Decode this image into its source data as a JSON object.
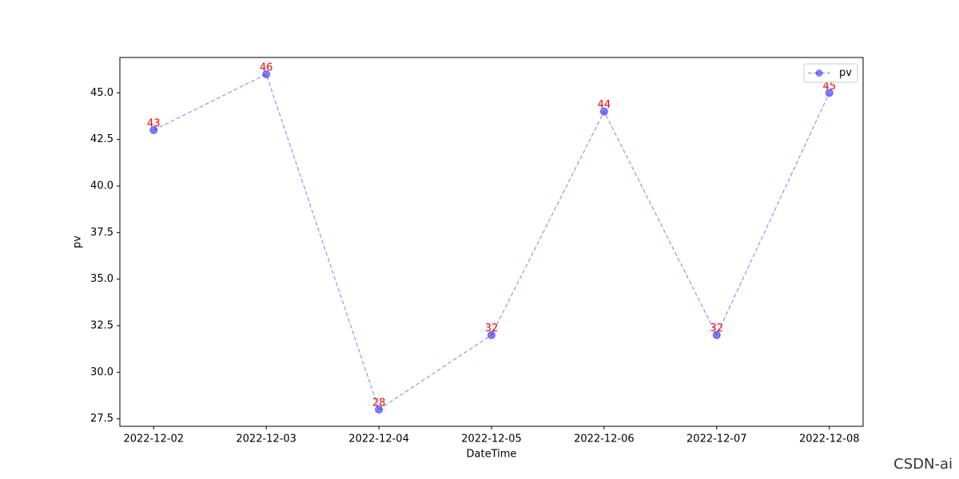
{
  "chart_data": {
    "type": "line",
    "xlabel": "DateTime",
    "ylabel": "pv",
    "categories": [
      "2022-12-02",
      "2022-12-03",
      "2022-12-04",
      "2022-12-05",
      "2022-12-06",
      "2022-12-07",
      "2022-12-08"
    ],
    "series": [
      {
        "name": "pv",
        "color": "#0000ff",
        "values": [
          43,
          46,
          28,
          32,
          44,
          32,
          45
        ]
      }
    ],
    "value_label_color": "#ff0000",
    "ylim": [
      27.1,
      46.9
    ],
    "yticks": [
      27.5,
      {
        "value": 30,
        "label": "30.0"
      },
      32.5,
      {
        "value": 35,
        "label": "35.0"
      },
      37.5,
      {
        "value": 40,
        "label": "40.0"
      },
      42.5,
      {
        "value": 45,
        "label": "45.0"
      }
    ],
    "legend": "upper right",
    "watermark": "CSDN-ai"
  }
}
